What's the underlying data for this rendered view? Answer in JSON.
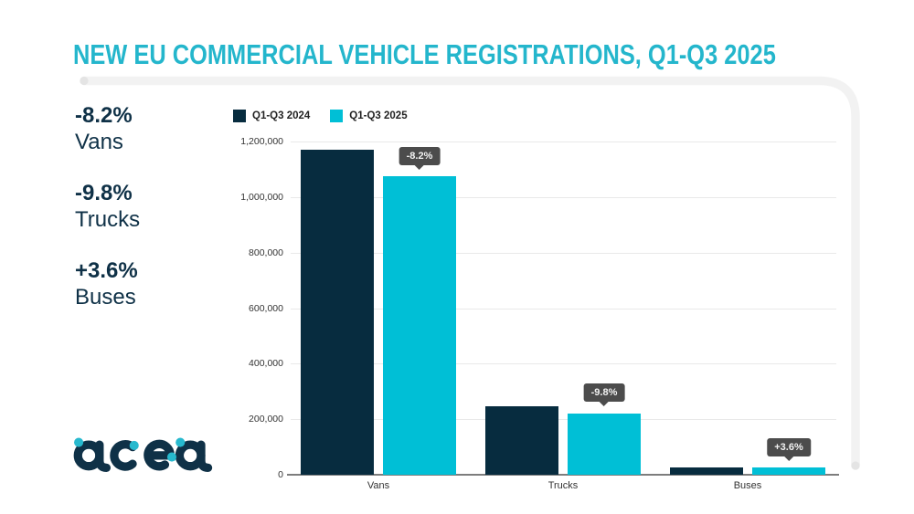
{
  "page": {
    "title": "NEW EU COMMERCIAL VEHICLE REGISTRATIONS, Q1-Q3 2025"
  },
  "stats": [
    {
      "value": "-8.2%",
      "label": "Vans"
    },
    {
      "value": "-9.8%",
      "label": "Trucks"
    },
    {
      "value": "+3.6%",
      "label": "Buses"
    }
  ],
  "logo": {
    "text": "acea"
  },
  "colors": {
    "title": "#24b6cc",
    "navy": "#072c3f",
    "cyan": "#00bfd6",
    "stats_text": "#0f3147",
    "frame": "#f2f2f2",
    "gridline": "#e9e9e9",
    "axis": "#7d7d7d",
    "callout_bg": "#4c4c4c"
  },
  "chart_data": {
    "type": "bar",
    "title": "NEW EU COMMERCIAL VEHICLE REGISTRATIONS, Q1-Q3 2025",
    "categories": [
      "Vans",
      "Trucks",
      "Buses"
    ],
    "series": [
      {
        "name": "Q1-Q3 2024",
        "color": "#072c3f",
        "values": [
          1170000,
          246000,
          25000
        ]
      },
      {
        "name": "Q1-Q3 2025",
        "color": "#00bfd6",
        "values": [
          1075000,
          222000,
          26000
        ]
      }
    ],
    "annotations": [
      {
        "category": "Vans",
        "label": "-8.2%"
      },
      {
        "category": "Trucks",
        "label": "-9.8%"
      },
      {
        "category": "Buses",
        "label": "+3.6%"
      }
    ],
    "xlabel": "",
    "ylabel": "",
    "ylim": [
      0,
      1200000
    ],
    "yticks": [
      "0",
      "200,000",
      "400,000",
      "600,000",
      "800,000",
      "1,000,000",
      "1,200,000"
    ],
    "grid": true,
    "legend_position": "top-left"
  }
}
